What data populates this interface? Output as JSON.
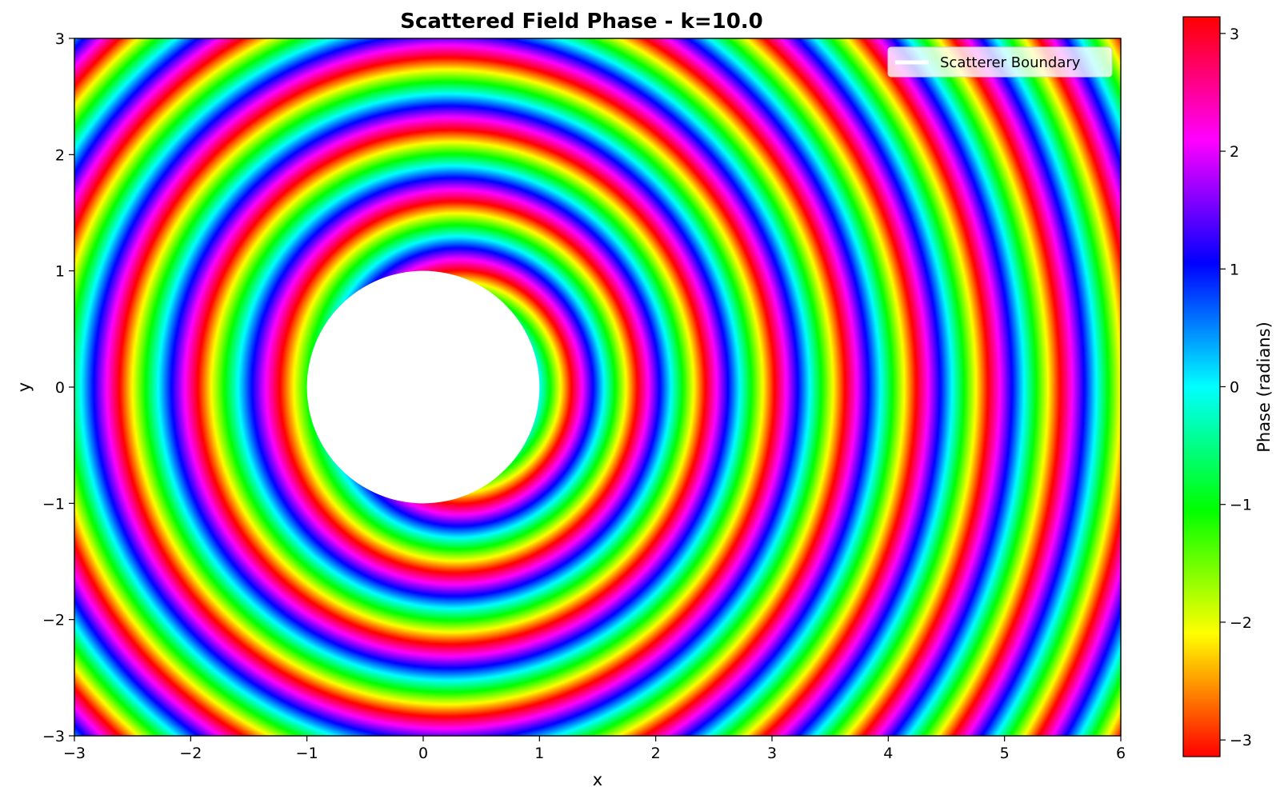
{
  "chart_data": {
    "type": "heatmap",
    "title": "Scattered Field Phase - k=10.0",
    "xlabel": "x",
    "ylabel": "y",
    "xlim": [
      -3,
      6
    ],
    "ylim": [
      -3,
      3
    ],
    "xticks": [
      "−3",
      "−2",
      "−1",
      "0",
      "1",
      "2",
      "3",
      "4",
      "5",
      "6"
    ],
    "yticks": [
      "−3",
      "−2",
      "−1",
      "0",
      "1",
      "2",
      "3"
    ],
    "colorbar": {
      "label": "Phase (radians)",
      "range": [
        -3.14159,
        3.14159
      ],
      "ticks": [
        "−3",
        "−2",
        "−1",
        "0",
        "1",
        "2",
        "3"
      ],
      "colormap": "hsv"
    },
    "scatterer": {
      "shape": "circle",
      "center": [
        0,
        0
      ],
      "radius": 1.0,
      "fill": "#ffffff"
    },
    "wavenumber": 10.0,
    "legend": {
      "position": "top-right",
      "entries": [
        {
          "label": "Scatterer Boundary",
          "color": "#ffffff"
        }
      ]
    }
  }
}
